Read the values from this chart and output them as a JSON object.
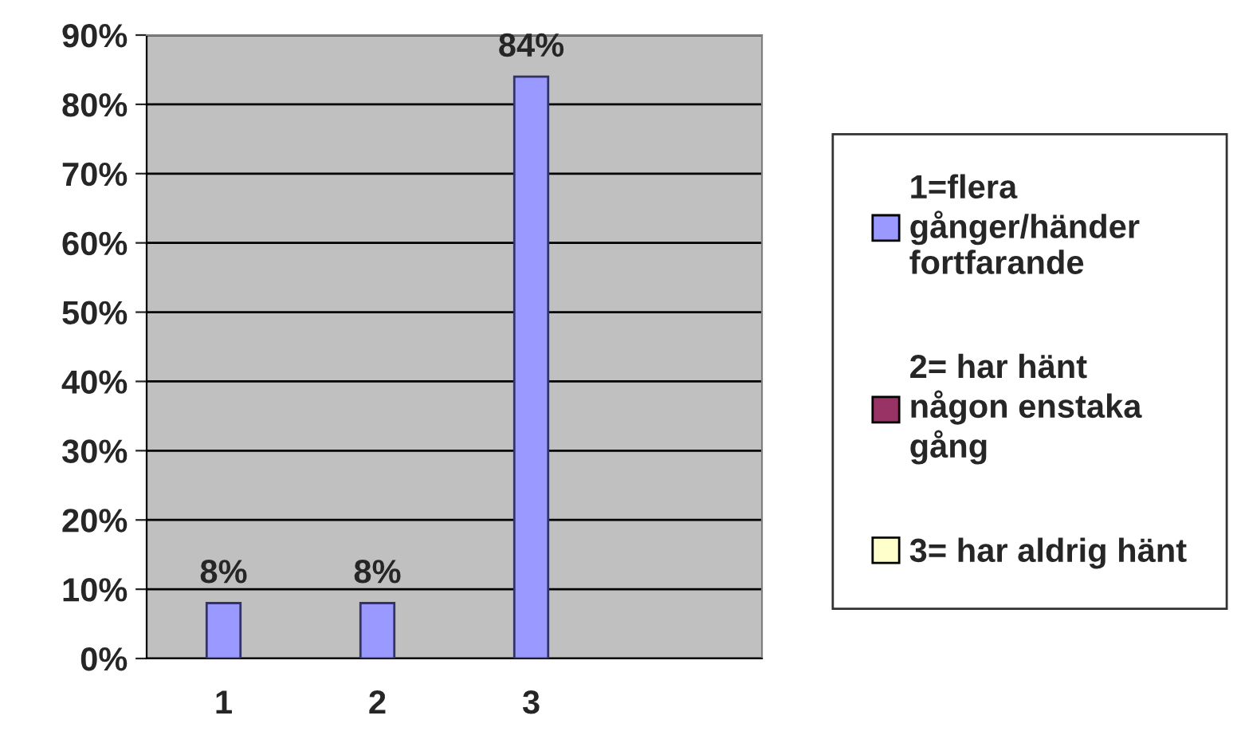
{
  "chart_data": {
    "type": "bar",
    "categories": [
      "1",
      "2",
      "3",
      null
    ],
    "series": [
      {
        "name": "1=flera gånger/händer fortfarande",
        "color": "#9999ff",
        "values": [
          8,
          8,
          84,
          null
        ],
        "value_labels": [
          "8%",
          "8%",
          "84%",
          null
        ]
      },
      {
        "name": "2= har hänt någon enstaka gång",
        "color": "#993366",
        "values": [
          null,
          null,
          null,
          null
        ]
      },
      {
        "name": "3= har aldrig hänt",
        "color": "#ffffcc",
        "values": [
          null,
          null,
          null,
          null
        ]
      }
    ],
    "ylim": [
      0,
      90
    ],
    "yticks": [
      {
        "value": 0,
        "label": "0%"
      },
      {
        "value": 10,
        "label": "10%"
      },
      {
        "value": 20,
        "label": "20%"
      },
      {
        "value": 30,
        "label": "30%"
      },
      {
        "value": 40,
        "label": "40%"
      },
      {
        "value": 50,
        "label": "50%"
      },
      {
        "value": 60,
        "label": "60%"
      },
      {
        "value": 70,
        "label": "70%"
      },
      {
        "value": 80,
        "label": "80%"
      },
      {
        "value": 90,
        "label": "90%"
      }
    ],
    "grid": "y",
    "legend": "right"
  }
}
